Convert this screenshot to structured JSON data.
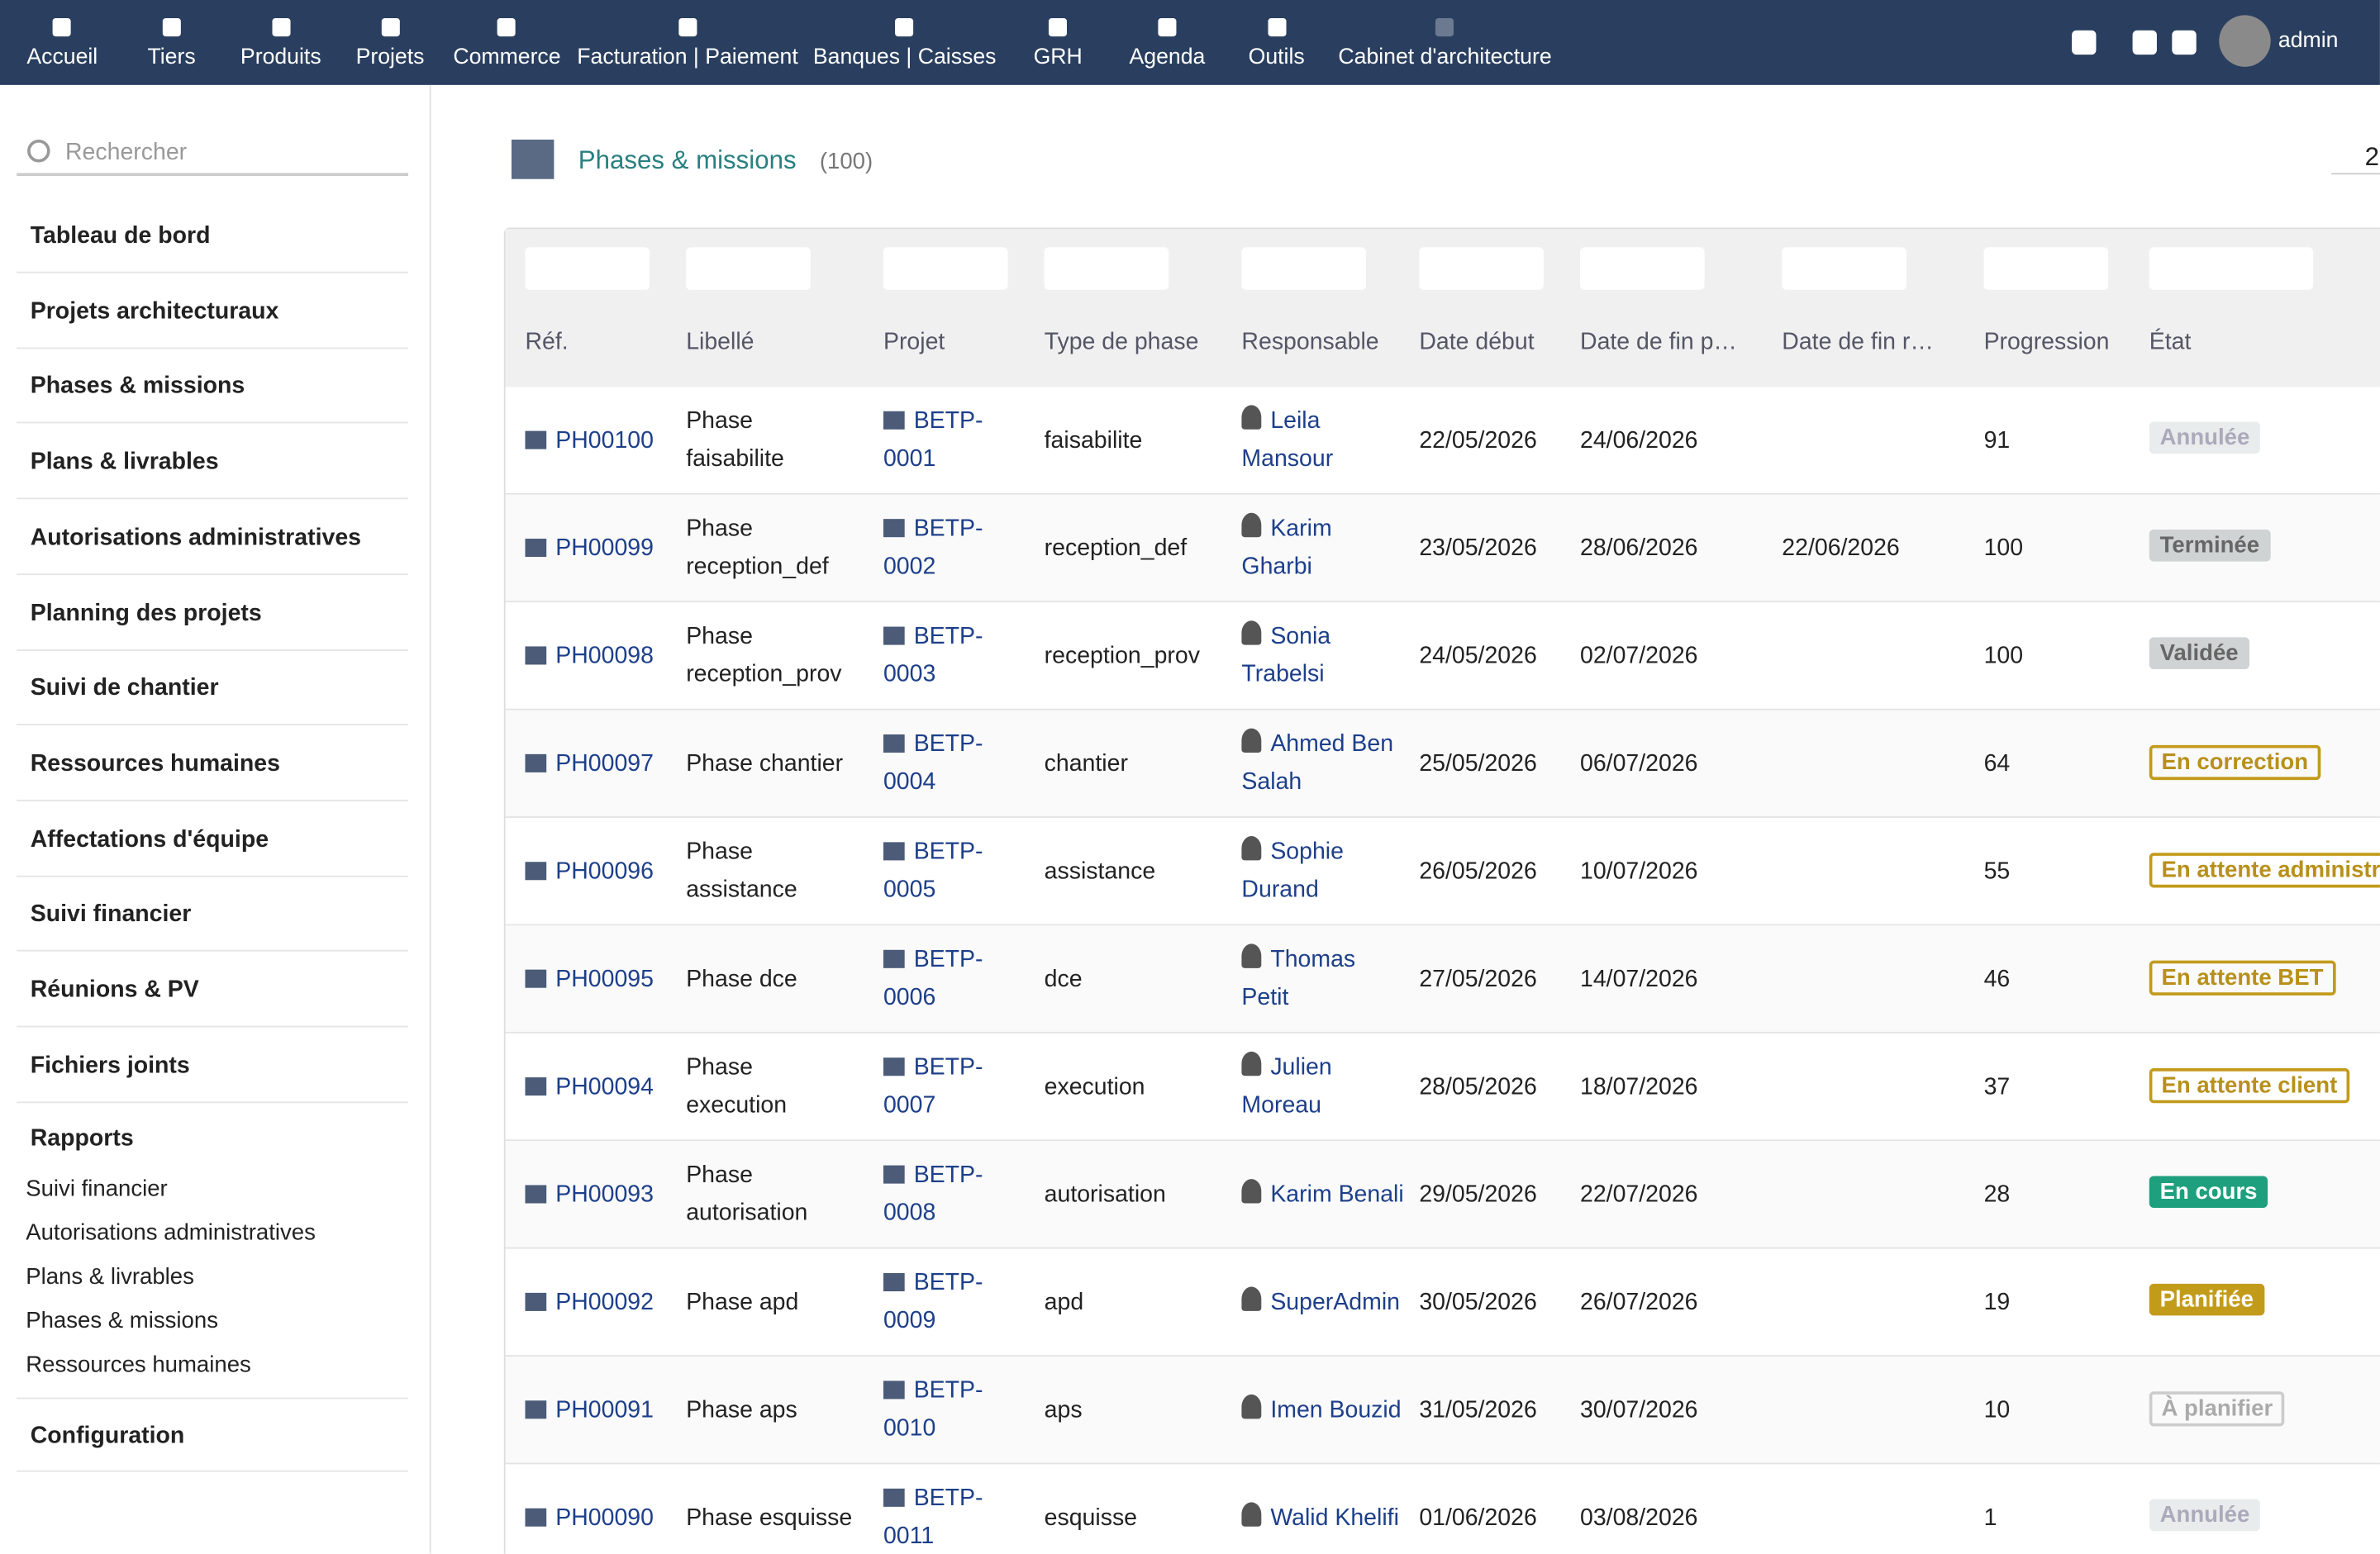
{
  "topbar": {
    "nav": [
      "Accueil",
      "Tiers",
      "Produits",
      "Projets",
      "Commerce",
      "Facturation | Paiement",
      "Banques | Caisses",
      "GRH",
      "Agenda",
      "Outils",
      "Cabinet d'architecture"
    ],
    "user": "admin"
  },
  "sidebar": {
    "search_placeholder": "Rechercher",
    "items": [
      "Tableau de bord",
      "Projets architecturaux",
      "Phases & missions",
      "Plans & livrables",
      "Autorisations administratives",
      "Planning des projets",
      "Suivi de chantier",
      "Ressources humaines",
      "Affectations d'équipe",
      "Suivi financier",
      "Réunions & PV",
      "Fichiers joints"
    ],
    "reports_title": "Rapports",
    "reports": [
      "Suivi financier",
      "Autorisations administratives",
      "Plans & livrables",
      "Phases & missions",
      "Ressources humaines"
    ],
    "config": "Configuration"
  },
  "header": {
    "title": "Phases & missions",
    "count": "(100)",
    "page": "2"
  },
  "table": {
    "columns": [
      "Réf.",
      "Libellé",
      "Projet",
      "Type de phase",
      "Responsable",
      "Date début",
      "Date de fin p…",
      "Date de fin r…",
      "Progression",
      "État"
    ],
    "rows": [
      [
        "PH00100",
        "Phase faisabilite",
        "BETP-0001",
        "faisabilite",
        "Leila Mansour",
        "22/05/2026",
        "24/06/2026",
        "",
        "91",
        "Annulée"
      ],
      [
        "PH00099",
        "Phase reception_def",
        "BETP-0002",
        "reception_def",
        "Karim Gharbi",
        "23/05/2026",
        "28/06/2026",
        "22/06/2026",
        "100",
        "Terminée"
      ],
      [
        "PH00098",
        "Phase reception_prov",
        "BETP-0003",
        "reception_prov",
        "Sonia Trabelsi",
        "24/05/2026",
        "02/07/2026",
        "",
        "100",
        "Validée"
      ],
      [
        "PH00097",
        "Phase chantier",
        "BETP-0004",
        "chantier",
        "Ahmed Ben Salah",
        "25/05/2026",
        "06/07/2026",
        "",
        "64",
        "En correction"
      ],
      [
        "PH00096",
        "Phase assistance",
        "BETP-0005",
        "assistance",
        "Sophie Durand",
        "26/05/2026",
        "10/07/2026",
        "",
        "55",
        "En attente administr"
      ],
      [
        "PH00095",
        "Phase dce",
        "BETP-0006",
        "dce",
        "Thomas Petit",
        "27/05/2026",
        "14/07/2026",
        "",
        "46",
        "En attente BET"
      ],
      [
        "PH00094",
        "Phase execution",
        "BETP-0007",
        "execution",
        "Julien Moreau",
        "28/05/2026",
        "18/07/2026",
        "",
        "37",
        "En attente client"
      ],
      [
        "PH00093",
        "Phase autorisation",
        "BETP-0008",
        "autorisation",
        "Karim Benali",
        "29/05/2026",
        "22/07/2026",
        "",
        "28",
        "En cours"
      ],
      [
        "PH00092",
        "Phase apd",
        "BETP-0009",
        "apd",
        "SuperAdmin",
        "30/05/2026",
        "26/07/2026",
        "",
        "19",
        "Planifiée"
      ],
      [
        "PH00091",
        "Phase aps",
        "BETP-0010",
        "aps",
        "Imen Bouzid",
        "31/05/2026",
        "30/07/2026",
        "",
        "10",
        "À planifier"
      ],
      [
        "PH00090",
        "Phase esquisse",
        "BETP-0011",
        "esquisse",
        "Walid Khelifi",
        "01/06/2026",
        "03/08/2026",
        "",
        "1",
        "Annulée"
      ]
    ]
  }
}
